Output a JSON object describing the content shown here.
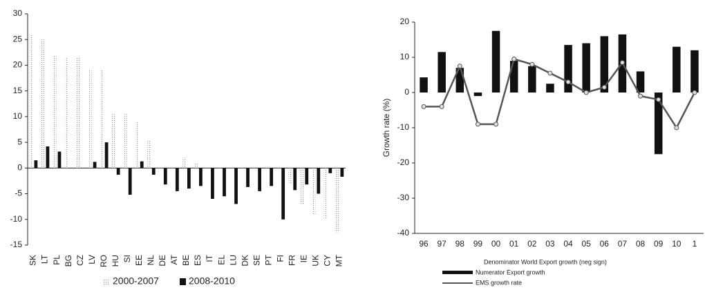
{
  "chart_data": [
    {
      "type": "bar",
      "categories": [
        "SK",
        "LT",
        "PL",
        "BG",
        "CZ",
        "LV",
        "RO",
        "HU",
        "SI",
        "EE",
        "NL",
        "DE",
        "AT",
        "BE",
        "ES",
        "IT",
        "EL",
        "LU",
        "DK",
        "SE",
        "PT",
        "FI",
        "FR",
        "IE",
        "UK",
        "CY",
        "MT"
      ],
      "series": [
        {
          "name": "2000-2007",
          "color": "#c4c4c4",
          "values": [
            26,
            25,
            22,
            21.5,
            21.5,
            19,
            19,
            10.5,
            10.5,
            9,
            5.5,
            0.3,
            0.3,
            2,
            1,
            0.3,
            0.3,
            0.3,
            0.3,
            0.3,
            0.3,
            0.3,
            -3,
            -7,
            -9,
            -10,
            -12.5
          ]
        },
        {
          "name": "2008-2010",
          "color": "#111111",
          "values": [
            1.5,
            4.2,
            3.2,
            0,
            0,
            1.2,
            5,
            -1.3,
            -5.2,
            1.3,
            -1.3,
            -3.2,
            -4.5,
            -4,
            -3.5,
            -6,
            -5.5,
            -7,
            -3.7,
            -4.5,
            -3.5,
            -10,
            -4.3,
            -3.2,
            -5,
            -1,
            -1.7
          ]
        }
      ],
      "ylim": [
        -15,
        30
      ],
      "yticks": [
        -15,
        -10,
        -5,
        0,
        5,
        10,
        15,
        20,
        25,
        30
      ]
    },
    {
      "type": "bar_line",
      "ylabel": "Growth rate (%)",
      "xlabel": "Denominator  World Export growth (neg sign)",
      "categories": [
        "96",
        "97",
        "98",
        "99",
        "00",
        "01",
        "02",
        "03",
        "04",
        "05",
        "06",
        "07",
        "08",
        "09",
        "10",
        "1"
      ],
      "series": [
        {
          "name": "Numerator  Export growth",
          "color": "#111111",
          "values": [
            4.3,
            11.5,
            7,
            -1,
            17.5,
            9,
            7.5,
            2.5,
            13.5,
            14,
            16,
            16.5,
            6,
            -17.5,
            13,
            12
          ]
        },
        {
          "name": "EMS growth rate",
          "color": "#555555",
          "values": [
            -4,
            -4,
            7.5,
            -9,
            -9,
            9.5,
            8,
            5.5,
            3,
            0,
            1.5,
            8.5,
            -1,
            -2,
            -10,
            0
          ]
        }
      ],
      "ylim": [
        -40,
        20
      ],
      "yticks": [
        -40,
        -30,
        -20,
        -10,
        0,
        10,
        20
      ]
    }
  ]
}
